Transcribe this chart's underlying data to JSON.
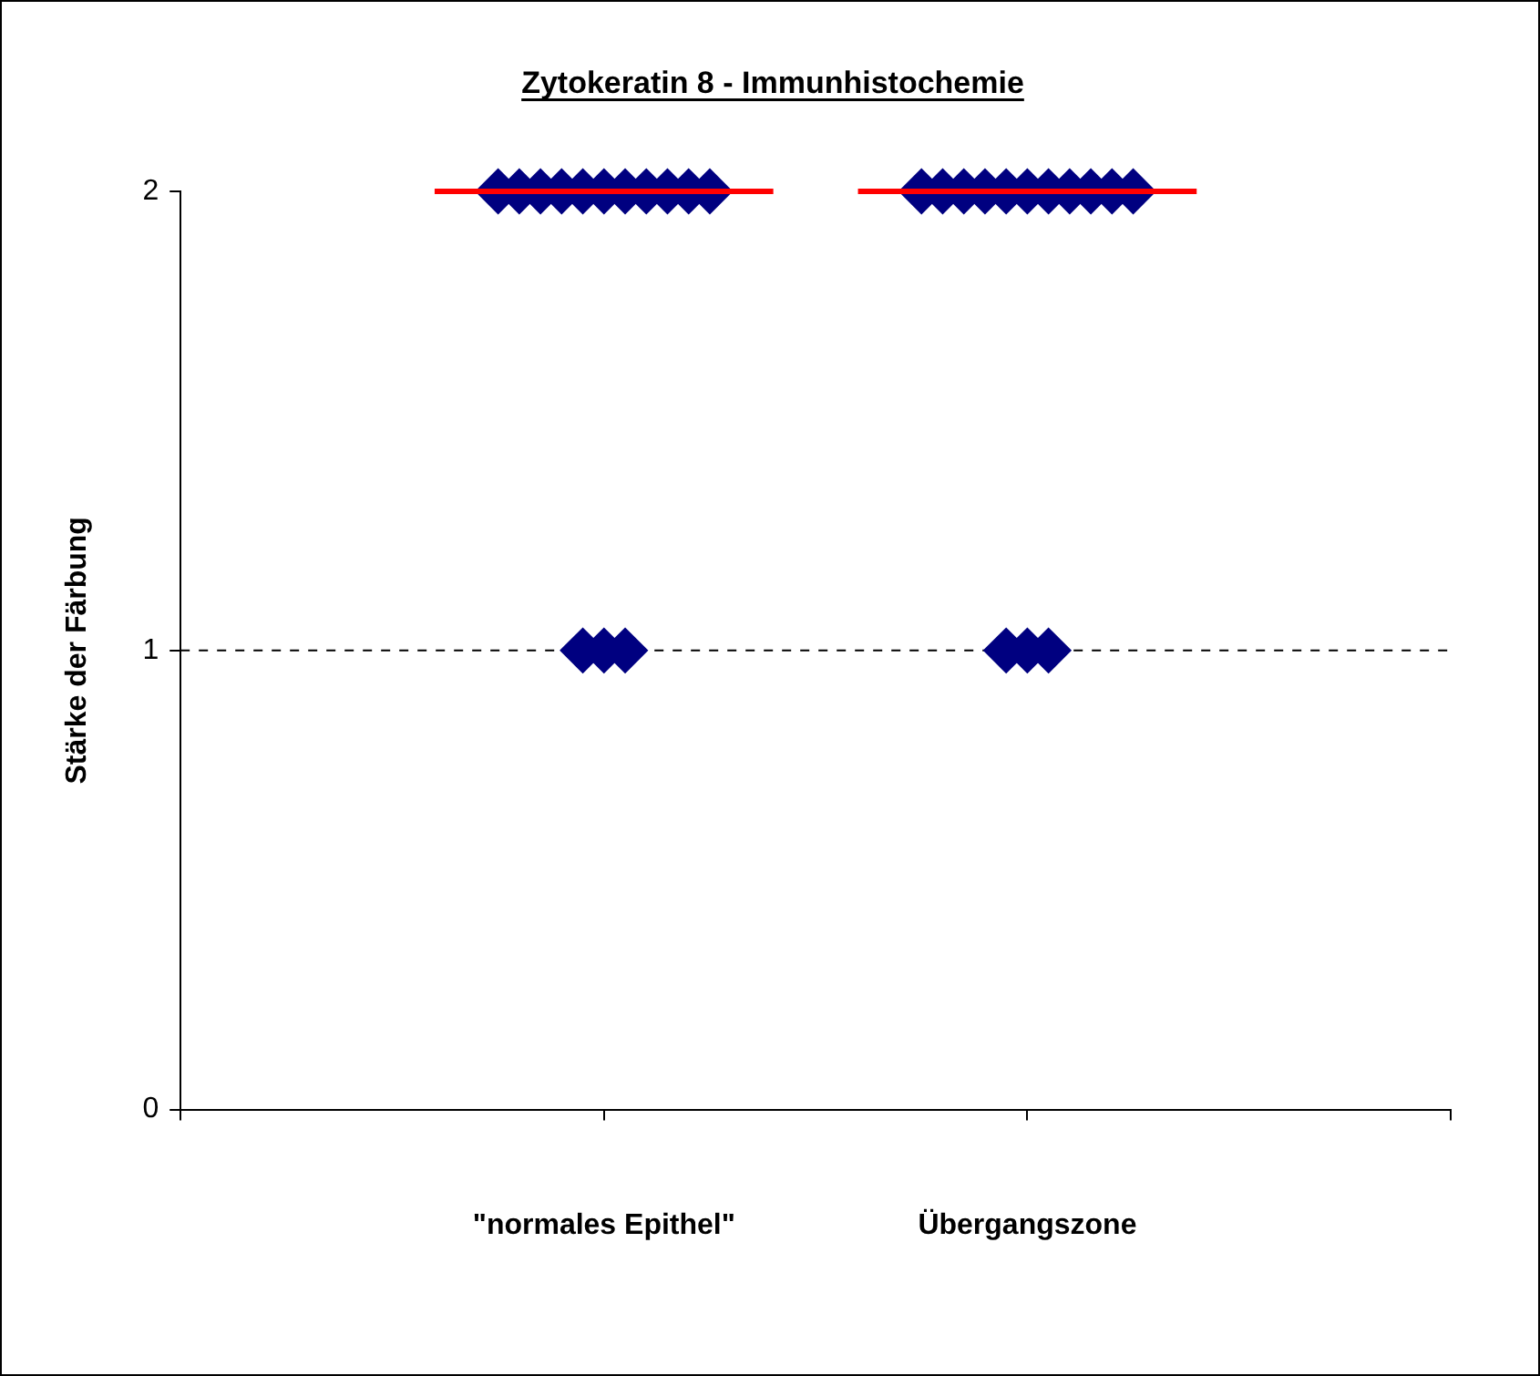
{
  "chart_data": {
    "type": "scatter",
    "title": "Zytokeratin 8 - Immunhistochemie",
    "ylabel": "Stärke der Färbung",
    "categories": [
      null,
      "\"normales Epithel\"",
      "Übergangszone",
      null
    ],
    "ylim": [
      0,
      2
    ],
    "yticks": [
      0,
      1,
      2
    ],
    "grid": false,
    "legend": false,
    "marker": "diamond",
    "series": [
      {
        "color": "#000080",
        "x": [
          "\"normales Epithel\"",
          "\"normales Epithel\"",
          "\"normales Epithel\"",
          "\"normales Epithel\"",
          "\"normales Epithel\"",
          "\"normales Epithel\"",
          "\"normales Epithel\"",
          "\"normales Epithel\"",
          "\"normales Epithel\"",
          "\"normales Epithel\"",
          "\"normales Epithel\"",
          "\"normales Epithel\"",
          "\"normales Epithel\"",
          "\"normales Epithel\"",
          "Übergangszone",
          "Übergangszone",
          "Übergangszone",
          "Übergangszone",
          "Übergangszone",
          "Übergangszone",
          "Übergangszone",
          "Übergangszone",
          "Übergangszone",
          "Übergangszone",
          "Übergangszone",
          "Übergangszone",
          "Übergangszone",
          "Übergangszone"
        ],
        "values": [
          2,
          2,
          2,
          2,
          2,
          2,
          2,
          2,
          2,
          2,
          2,
          1,
          1,
          1,
          2,
          2,
          2,
          2,
          2,
          2,
          2,
          2,
          2,
          2,
          2,
          1,
          1,
          1
        ]
      },
      {
        "type": "box",
        "color": "#ff0000",
        "boxes": [
          null,
          {
            "low": 2,
            "q1": 2,
            "median": 2,
            "q3": 2,
            "high": 2
          },
          {
            "low": 2,
            "q1": 2,
            "median": 2,
            "q3": 2,
            "high": 2
          },
          null
        ]
      }
    ],
    "ref_lines": [
      {
        "axis": "y",
        "value": 1,
        "line_style": "dashed",
        "color": "#000000"
      }
    ]
  }
}
